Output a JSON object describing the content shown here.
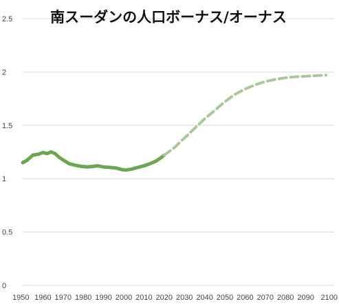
{
  "chart_data": {
    "type": "line",
    "title": "南スーダンの人口ボーナス/オーナス",
    "xlabel": "",
    "ylabel": "",
    "xlim": [
      1950,
      2100
    ],
    "ylim": [
      0,
      2.5
    ],
    "grid": "horizontal",
    "x_ticks": [
      "1950",
      "1960",
      "1970",
      "1980",
      "1990",
      "2000",
      "2010",
      "2020",
      "2030",
      "2040",
      "2050",
      "2060",
      "2070",
      "2080",
      "2090",
      "2100"
    ],
    "y_ticks": [
      "0",
      "0.5",
      "1",
      "1.5",
      "2",
      "2.5"
    ],
    "series": [
      {
        "style": "solid",
        "color": "#6aa84f",
        "x": [
          1950,
          1952,
          1955,
          1958,
          1960,
          1962,
          1964,
          1966,
          1968,
          1970,
          1973,
          1976,
          1979,
          1982,
          1985,
          1987,
          1990,
          1993,
          1996,
          1999,
          2001,
          2004,
          2007,
          2010,
          2013,
          2016,
          2019,
          2020
        ],
        "y": [
          1.15,
          1.17,
          1.22,
          1.23,
          1.245,
          1.235,
          1.25,
          1.235,
          1.2,
          1.175,
          1.14,
          1.125,
          1.115,
          1.11,
          1.115,
          1.12,
          1.11,
          1.105,
          1.1,
          1.085,
          1.08,
          1.09,
          1.105,
          1.12,
          1.14,
          1.165,
          1.205,
          1.22
        ]
      },
      {
        "style": "dashed",
        "color": "#a9c89a",
        "x": [
          2020,
          2025,
          2030,
          2035,
          2040,
          2045,
          2050,
          2055,
          2060,
          2065,
          2070,
          2075,
          2080,
          2085,
          2090,
          2095,
          2100
        ],
        "y": [
          1.22,
          1.29,
          1.38,
          1.47,
          1.56,
          1.64,
          1.72,
          1.79,
          1.84,
          1.88,
          1.91,
          1.93,
          1.945,
          1.955,
          1.96,
          1.965,
          1.97
        ]
      }
    ]
  }
}
